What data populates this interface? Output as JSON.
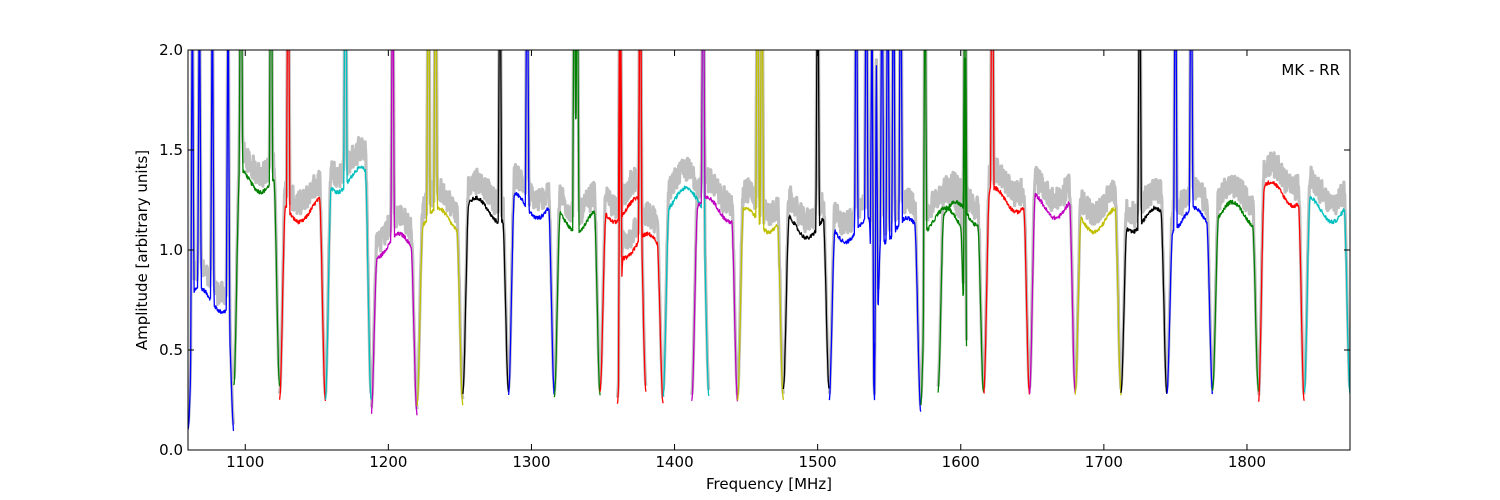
{
  "chart_data": {
    "type": "line",
    "title": "",
    "annotation": "MK - RR",
    "xlabel": "Frequency [MHz]",
    "ylabel": "Amplitude [arbitrary units]",
    "xlim": [
      1060,
      1872
    ],
    "ylim": [
      0.0,
      2.0
    ],
    "x_ticks": [
      1100,
      1200,
      1300,
      1400,
      1500,
      1600,
      1700,
      1800
    ],
    "y_ticks": [
      0.0,
      0.5,
      1.0,
      1.5,
      2.0
    ],
    "y_tick_labels": [
      "0.0",
      "0.5",
      "1.0",
      "1.5",
      "2.0"
    ],
    "grid": false,
    "envelope_color": "#bfbfbf",
    "band_color_cycle": [
      "#0000ff",
      "#008000",
      "#ff0000",
      "#00bfbf",
      "#bf00bf",
      "#bfbf00",
      "#000000"
    ],
    "band_width_mhz": 32,
    "band_starts_mhz": [
      1060,
      1092,
      1124,
      1156,
      1188,
      1220,
      1252,
      1284,
      1316,
      1348,
      1360,
      1392,
      1412,
      1444,
      1476,
      1508,
      1540,
      1572,
      1584,
      1616,
      1648,
      1680,
      1712,
      1744,
      1776,
      1808,
      1840
    ],
    "band_colors": [
      "#0000ff",
      "#008000",
      "#ff0000",
      "#00bfbf",
      "#bf00bf",
      "#bfbf00",
      "#000000",
      "#0000ff",
      "#008000",
      "#ff0000",
      "#ff0000",
      "#00bfbf",
      "#bf00bf",
      "#bfbf00",
      "#000000",
      "#0000ff",
      "#0000ff",
      "#008000",
      "#008000",
      "#ff0000",
      "#bf00bf",
      "#bfbf00",
      "#000000",
      "#0000ff",
      "#008000",
      "#ff0000",
      "#00bfbf"
    ],
    "band_plateau_levels": [
      0.75,
      1.35,
      1.2,
      1.35,
      1.02,
      1.15,
      1.2,
      1.22,
      1.15,
      1.2,
      1.02,
      1.25,
      1.2,
      1.15,
      1.12,
      1.1,
      1.1,
      1.15,
      1.18,
      1.25,
      1.22,
      1.15,
      1.15,
      1.15,
      1.18,
      1.28,
      1.2
    ],
    "band_min_levels": [
      0.1,
      0.32,
      0.25,
      0.25,
      0.18,
      0.22,
      0.28,
      0.28,
      0.27,
      0.3,
      0.23,
      0.27,
      0.25,
      0.25,
      0.3,
      0.25,
      0.2,
      0.23,
      0.28,
      0.28,
      0.28,
      0.28,
      0.29,
      0.28,
      0.3,
      0.24,
      0.28
    ],
    "rfi_spikes_mhz": [
      1063,
      1068,
      1077,
      1088,
      1097,
      1118,
      1130,
      1170,
      1203,
      1228,
      1233,
      1278,
      1297,
      1330,
      1332,
      1362,
      1376,
      1420,
      1458,
      1461,
      1500,
      1527,
      1534,
      1538,
      1541,
      1545,
      1549,
      1553,
      1558,
      1575,
      1603,
      1622,
      1725,
      1750,
      1761
    ]
  }
}
